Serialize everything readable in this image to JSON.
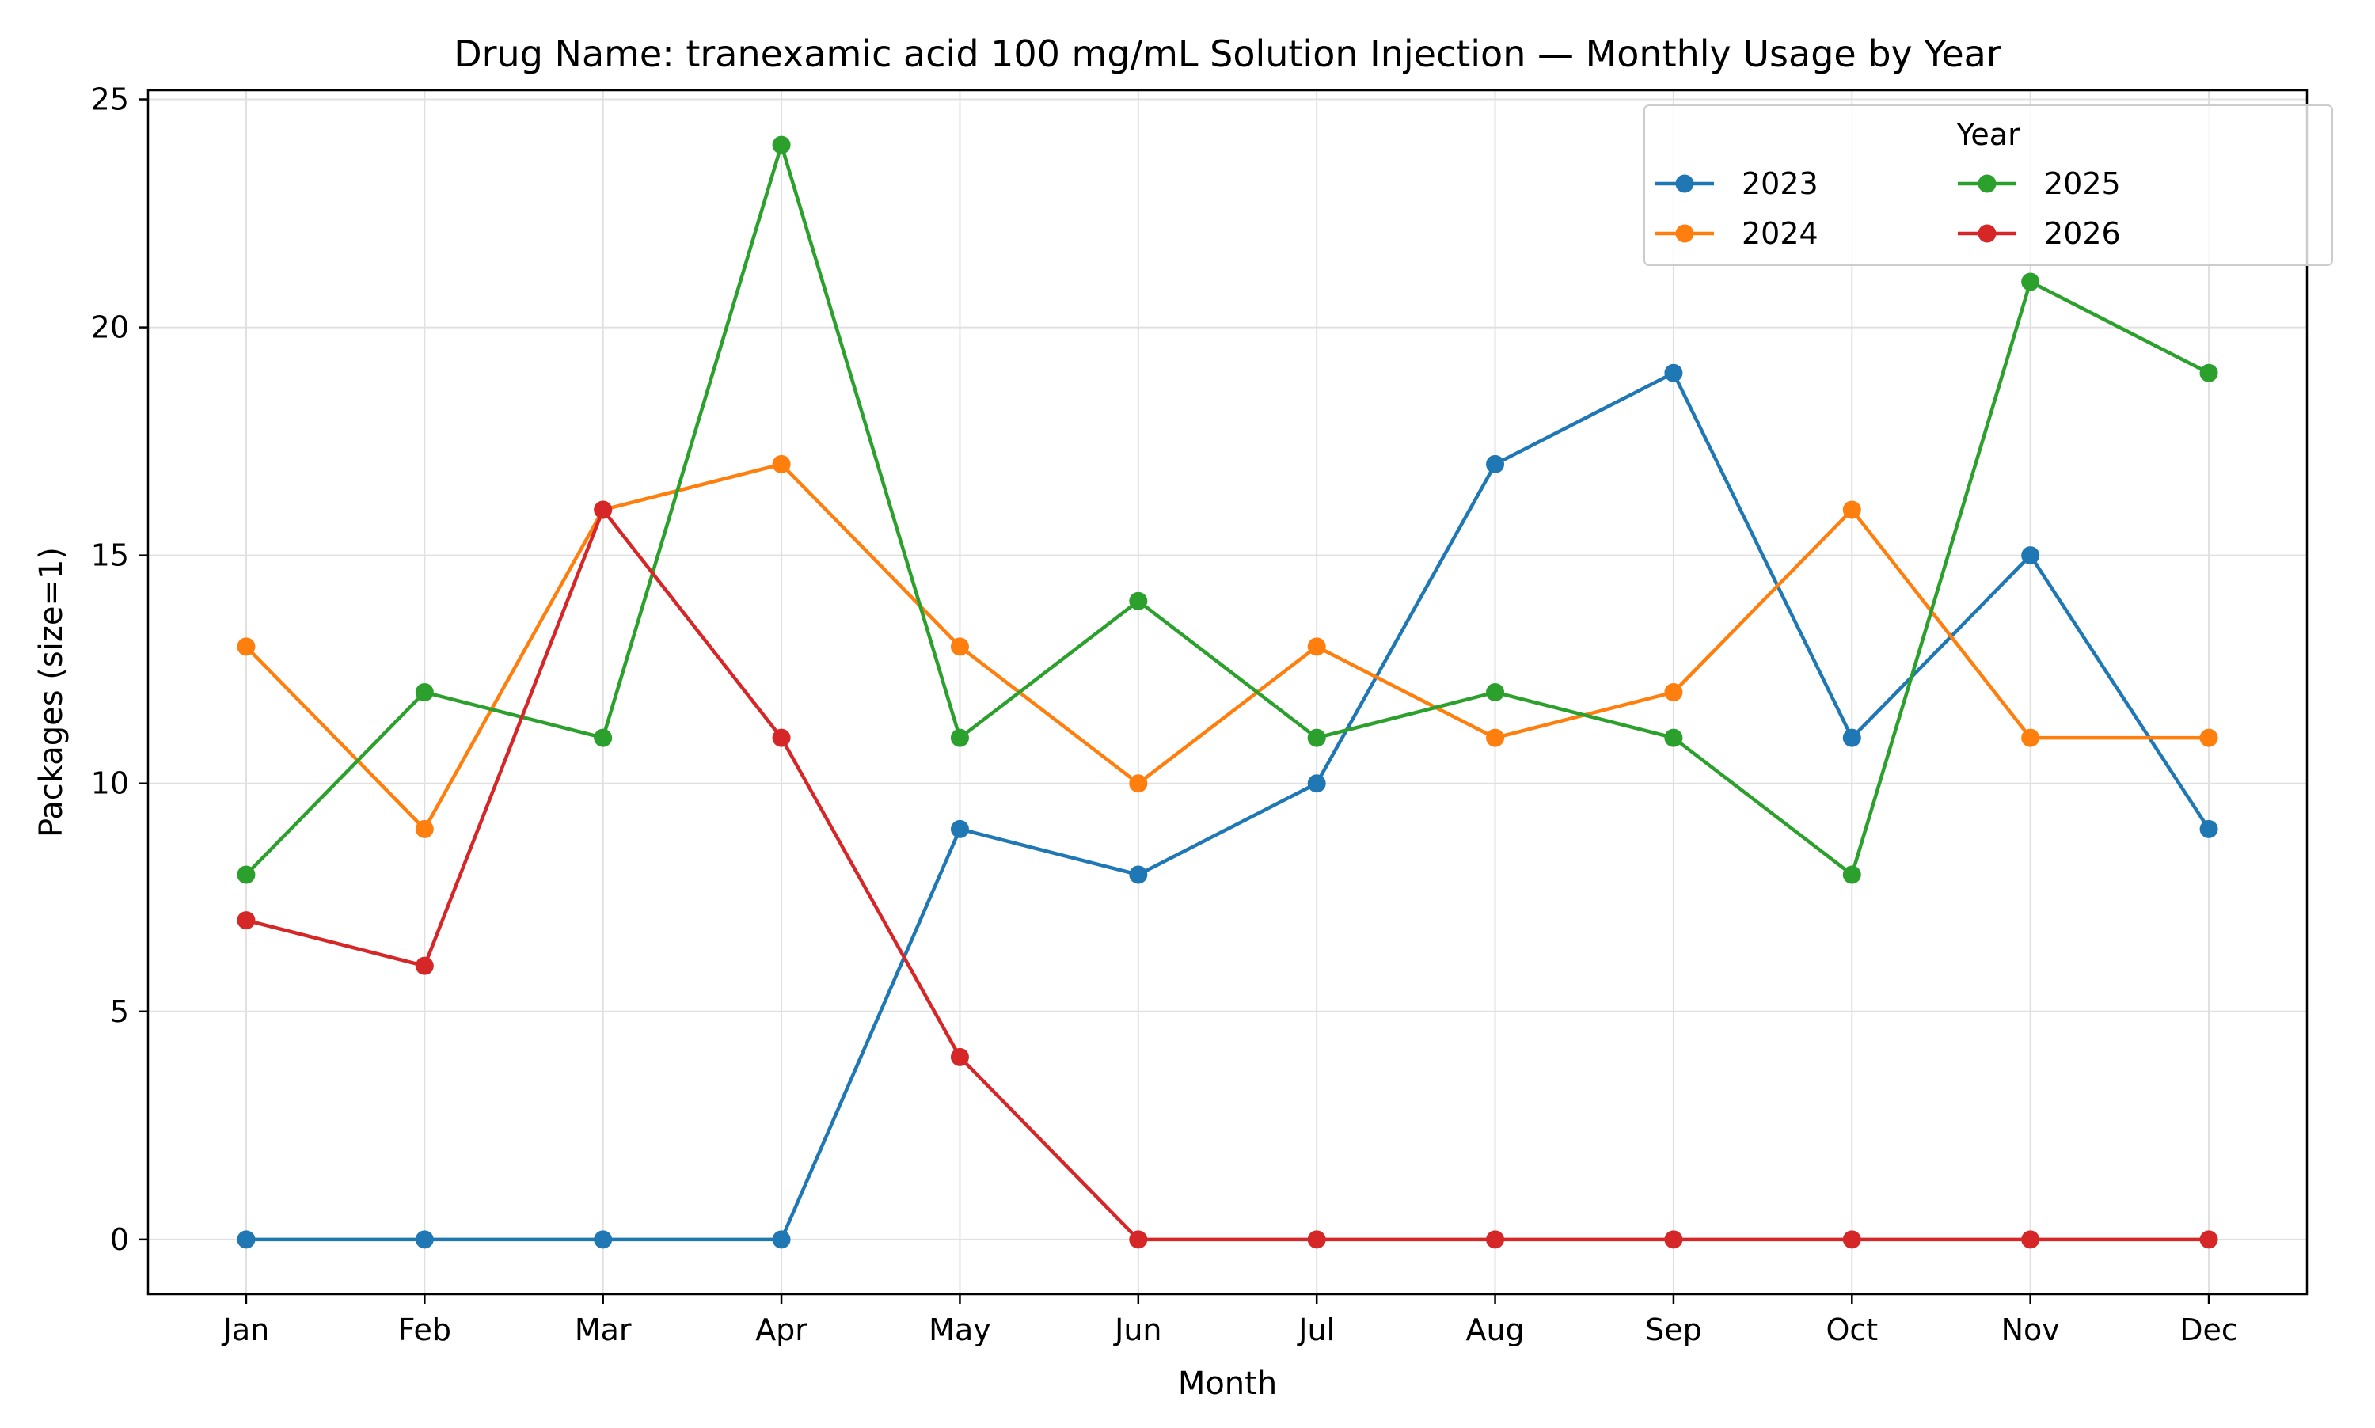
{
  "chart_data": {
    "type": "line",
    "title": "Drug Name: tranexamic acid 100 mg/mL Solution Injection — Monthly Usage by Year",
    "xlabel": "Month",
    "ylabel": "Packages (size=1)",
    "categories": [
      "Jan",
      "Feb",
      "Mar",
      "Apr",
      "May",
      "Jun",
      "Jul",
      "Aug",
      "Sep",
      "Oct",
      "Nov",
      "Dec"
    ],
    "ylim": [
      -1.2,
      25.2
    ],
    "yticks": [
      0,
      5,
      10,
      15,
      20,
      25
    ],
    "grid": true,
    "legend": {
      "title": "Year",
      "placement": "top-right",
      "columns": 3
    },
    "series": [
      {
        "name": "2023",
        "color": "#1f77b4",
        "values": [
          0,
          0,
          0,
          0,
          9,
          8,
          10,
          17,
          19,
          11,
          15,
          9
        ]
      },
      {
        "name": "2024",
        "color": "#ff7f0e",
        "values": [
          13,
          9,
          16,
          17,
          13,
          10,
          13,
          11,
          12,
          16,
          11,
          11
        ]
      },
      {
        "name": "2025",
        "color": "#2ca02c",
        "values": [
          8,
          12,
          11,
          24,
          11,
          14,
          11,
          12,
          11,
          8,
          21,
          19
        ]
      },
      {
        "name": "2026",
        "color": "#d62728",
        "values": [
          7,
          6,
          16,
          11,
          4,
          0,
          0,
          0,
          0,
          0,
          0,
          0
        ]
      }
    ]
  }
}
